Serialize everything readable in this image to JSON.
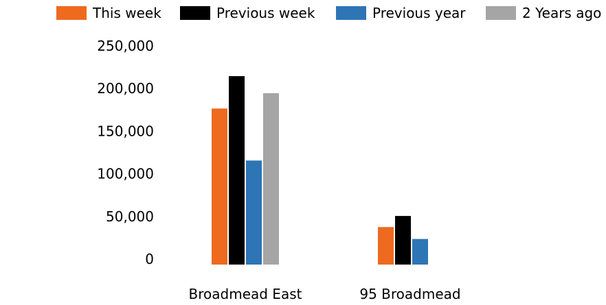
{
  "chart_data": {
    "type": "bar",
    "title": "",
    "xlabel": "",
    "ylabel": "",
    "categories": [
      "Broadmead East",
      "95 Broadmead"
    ],
    "series": [
      {
        "name": "This week",
        "color": "#ED6A1F",
        "values": [
          183000,
          44000
        ]
      },
      {
        "name": "Previous week",
        "color": "#000000",
        "values": [
          221000,
          57000
        ]
      },
      {
        "name": "Previous year",
        "color": "#2E75B6",
        "values": [
          122000,
          30000
        ]
      },
      {
        "name": "2 Years ago",
        "color": "#A5A5A5",
        "values": [
          201000,
          null
        ]
      }
    ],
    "ylim": [
      0,
      250000
    ],
    "yticks": [
      "0",
      "50,000",
      "100,000",
      "150,000",
      "200,000",
      "250,000"
    ],
    "ytick_values": [
      0,
      50000,
      100000,
      150000,
      200000,
      250000
    ],
    "grid": false,
    "legend_position": "top"
  }
}
